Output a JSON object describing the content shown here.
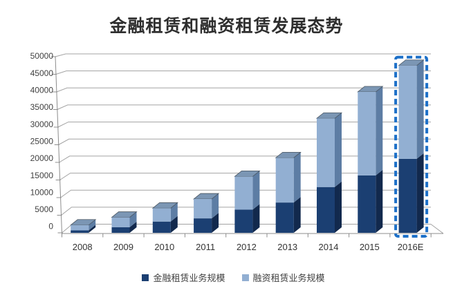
{
  "chart_data": {
    "type": "bar",
    "stacked": true,
    "title": "金融租赁和融资租赁发展态势",
    "unit_note": "",
    "categories": [
      "2008",
      "2009",
      "2010",
      "2011",
      "2012",
      "2013",
      "2014",
      "2015",
      "2016E"
    ],
    "series": [
      {
        "name": "金融租赁业务规模",
        "color": "#1b3f72",
        "side_color": "#12294d",
        "values": [
          700,
          1600,
          3200,
          4100,
          6600,
          8600,
          13000,
          16300,
          21000
        ]
      },
      {
        "name": "融资租赁业务规模",
        "color": "#92afd2",
        "side_color": "#5d7da4",
        "values": [
          1500,
          2800,
          3800,
          5500,
          9400,
          12700,
          19500,
          23700,
          26500
        ]
      }
    ],
    "totals": [
      2200,
      4400,
      7000,
      9600,
      16000,
      21300,
      32500,
      40000,
      47500
    ],
    "y_ticks": [
      0,
      5000,
      10000,
      15000,
      20000,
      25000,
      30000,
      35000,
      40000,
      45000,
      50000
    ],
    "ylim": [
      0,
      50000
    ],
    "forecast_category": "2016E",
    "forecast_border_color": "#1d70c8",
    "grid_color": "#a3a3a3",
    "axis_color": "#8c8c8c",
    "cap_color": "#7b96b4",
    "cap_edge_color": "#4a5560",
    "tick_label_color": "#3f3f3f",
    "legend_position": "bottom",
    "style": "excel-3d"
  }
}
